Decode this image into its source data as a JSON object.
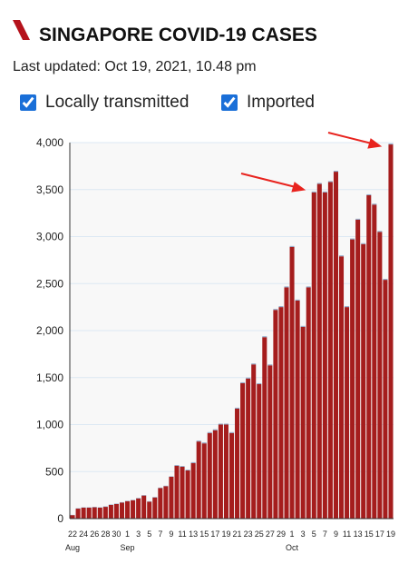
{
  "chart_data": {
    "type": "stacked-bar",
    "title": "SINGAPORE COVID-19 CASES",
    "subtitle": "Last updated: Oct 19, 2021, 10.48 pm",
    "categories": [
      "22",
      null,
      "24",
      null,
      "26",
      null,
      "28",
      null,
      "30",
      null,
      "1",
      null,
      "3",
      null,
      "5",
      null,
      "7",
      null,
      "9",
      null,
      "11",
      null,
      "13",
      null,
      "15",
      null,
      "17",
      null,
      "19",
      null,
      "21",
      null,
      "23",
      null,
      "25",
      null,
      "27",
      null,
      "29",
      null,
      "1",
      null,
      "3",
      null,
      "5",
      null,
      "7",
      null,
      "9",
      null,
      "11",
      null,
      "13",
      null,
      "15",
      null,
      "17",
      null,
      "19"
    ],
    "months": [
      "Aug",
      null,
      null,
      null,
      null,
      null,
      null,
      null,
      null,
      null,
      "Sep",
      null,
      null,
      null,
      null,
      null,
      null,
      null,
      null,
      null,
      null,
      null,
      null,
      null,
      null,
      null,
      null,
      null,
      null,
      null,
      null,
      null,
      null,
      null,
      null,
      null,
      null,
      null,
      null,
      null,
      "Oct",
      null,
      null,
      null,
      null,
      null,
      null,
      null,
      null,
      null,
      null,
      null,
      null,
      null,
      null,
      null,
      null,
      null,
      null
    ],
    "series": [
      {
        "name": "Locally transmitted",
        "color": "#a51d1d",
        "values": [
          37,
          106,
          116,
          116,
          120,
          116,
          125,
          145,
          155,
          170,
          185,
          195,
          215,
          245,
          180,
          225,
          325,
          345,
          445,
          562,
          552,
          512,
          590,
          820,
          800,
          910,
          940,
          1000,
          1000,
          910,
          1170,
          1440,
          1490,
          1640,
          1430,
          1930,
          1630,
          2220,
          2250,
          2460,
          2890,
          2320,
          2040,
          2460,
          3470,
          3560,
          3470,
          3580,
          3690,
          2790,
          2250,
          2970,
          3180,
          2920,
          3440,
          3340,
          3050,
          2540,
          3980
        ]
      },
      {
        "name": "Imported",
        "color": "#8fa9c8",
        "values": [
          3,
          4,
          4,
          4,
          5,
          4,
          5,
          5,
          5,
          5,
          5,
          5,
          5,
          5,
          5,
          5,
          5,
          5,
          5,
          8,
          8,
          8,
          10,
          10,
          10,
          10,
          10,
          10,
          10,
          10,
          10,
          10,
          10,
          10,
          10,
          10,
          10,
          10,
          10,
          10,
          10,
          10,
          10,
          10,
          10,
          10,
          10,
          10,
          10,
          10,
          10,
          10,
          10,
          10,
          10,
          10,
          10,
          10,
          10
        ]
      }
    ],
    "ylim": [
      0,
      4000
    ],
    "yticks": [
      0,
      500,
      {
        "value": 1000,
        "label": "1,000"
      },
      {
        "value": 1500,
        "label": "1,500"
      },
      {
        "value": 2000,
        "label": "2,000"
      },
      {
        "value": 2500,
        "label": "2,500"
      },
      {
        "value": 3000,
        "label": "3,000"
      },
      {
        "value": 3500,
        "label": "3,500"
      },
      {
        "value": 4000,
        "label": "4,000"
      }
    ],
    "grid": true
  }
}
